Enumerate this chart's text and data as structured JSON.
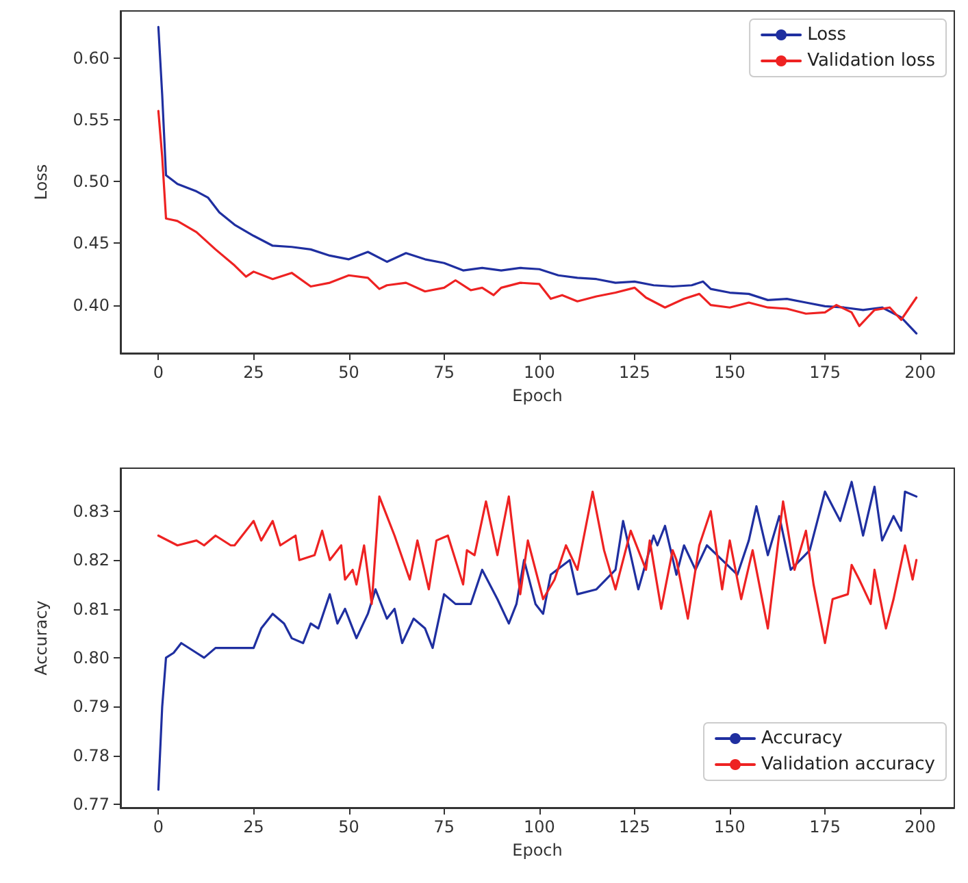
{
  "chart_data": [
    {
      "type": "line",
      "xlabel": "Epoch",
      "ylabel": "Loss",
      "xlim": [
        -9.95,
        208.95
      ],
      "xticks": [
        0,
        25,
        50,
        75,
        100,
        125,
        150,
        175,
        200
      ],
      "ylim": [
        0.361,
        0.638
      ],
      "yticks": [
        {
          "value": 0.4,
          "label": "0.40"
        },
        {
          "value": 0.45,
          "label": "0.45"
        },
        {
          "value": 0.5,
          "label": "0.50"
        },
        {
          "value": 0.55,
          "label": "0.55"
        },
        {
          "value": 0.6,
          "label": "0.60"
        }
      ],
      "legend": "top right",
      "line_style": "solid",
      "series": [
        {
          "name": "Loss",
          "color": "#1f2fa0",
          "x": [
            0,
            1,
            2,
            5,
            10,
            13,
            16,
            20,
            25,
            30,
            35,
            40,
            45,
            50,
            55,
            60,
            65,
            70,
            75,
            80,
            85,
            90,
            95,
            100,
            105,
            110,
            115,
            120,
            125,
            130,
            135,
            140,
            143,
            145,
            150,
            155,
            160,
            165,
            170,
            175,
            180,
            185,
            190,
            195,
            199
          ],
          "values": [
            0.625,
            0.57,
            0.505,
            0.498,
            0.492,
            0.487,
            0.475,
            0.465,
            0.456,
            0.448,
            0.447,
            0.445,
            0.44,
            0.437,
            0.443,
            0.435,
            0.442,
            0.437,
            0.434,
            0.428,
            0.43,
            0.428,
            0.43,
            0.429,
            0.424,
            0.422,
            0.421,
            0.418,
            0.419,
            0.416,
            0.415,
            0.416,
            0.419,
            0.413,
            0.41,
            0.409,
            0.404,
            0.405,
            0.402,
            0.399,
            0.398,
            0.396,
            0.398,
            0.39,
            0.377
          ]
        },
        {
          "name": "Validation loss",
          "color": "#ee2222",
          "x": [
            0,
            1,
            2,
            5,
            10,
            15,
            20,
            23,
            25,
            30,
            35,
            40,
            45,
            50,
            55,
            58,
            60,
            65,
            70,
            75,
            78,
            82,
            85,
            88,
            90,
            95,
            100,
            103,
            106,
            110,
            115,
            120,
            125,
            128,
            133,
            138,
            142,
            145,
            150,
            155,
            160,
            165,
            170,
            175,
            178,
            182,
            184,
            188,
            192,
            195,
            199
          ],
          "values": [
            0.557,
            0.52,
            0.47,
            0.468,
            0.459,
            0.445,
            0.432,
            0.423,
            0.427,
            0.421,
            0.426,
            0.415,
            0.418,
            0.424,
            0.422,
            0.413,
            0.416,
            0.418,
            0.411,
            0.414,
            0.42,
            0.412,
            0.414,
            0.408,
            0.414,
            0.418,
            0.417,
            0.405,
            0.408,
            0.403,
            0.407,
            0.41,
            0.414,
            0.406,
            0.398,
            0.405,
            0.409,
            0.4,
            0.398,
            0.402,
            0.398,
            0.397,
            0.393,
            0.394,
            0.4,
            0.394,
            0.383,
            0.396,
            0.398,
            0.388,
            0.406
          ]
        }
      ]
    },
    {
      "type": "line",
      "xlabel": "Epoch",
      "ylabel": "Accuracy",
      "xlim": [
        -9.95,
        208.95
      ],
      "xticks": [
        0,
        25,
        50,
        75,
        100,
        125,
        150,
        175,
        200
      ],
      "ylim": [
        0.7693,
        0.8388
      ],
      "yticks": [
        0.77,
        0.78,
        0.79,
        {
          "value": 0.8,
          "label": "0.80"
        },
        0.81,
        0.82,
        0.83
      ],
      "legend": "bottom right",
      "line_style": "solid",
      "series": [
        {
          "name": "Accuracy",
          "color": "#1f2fa0",
          "x": [
            0,
            1,
            2,
            4,
            6,
            10,
            12,
            15,
            20,
            25,
            27,
            30,
            33,
            35,
            38,
            40,
            42,
            45,
            47,
            49,
            52,
            55,
            57,
            60,
            62,
            64,
            67,
            70,
            72,
            75,
            78,
            82,
            85,
            89,
            92,
            94,
            96,
            99,
            101,
            103,
            108,
            110,
            115,
            120,
            122,
            126,
            130,
            131,
            133,
            136,
            138,
            141,
            144,
            148,
            152,
            155,
            157,
            160,
            163,
            166,
            171,
            175,
            177,
            179,
            182,
            185,
            188,
            190,
            193,
            195,
            196,
            199
          ],
          "values": [
            0.773,
            0.79,
            0.8,
            0.801,
            0.803,
            0.801,
            0.8,
            0.802,
            0.802,
            0.802,
            0.806,
            0.809,
            0.807,
            0.804,
            0.803,
            0.807,
            0.806,
            0.813,
            0.807,
            0.81,
            0.804,
            0.809,
            0.814,
            0.808,
            0.81,
            0.803,
            0.808,
            0.806,
            0.802,
            0.813,
            0.811,
            0.811,
            0.818,
            0.812,
            0.807,
            0.811,
            0.82,
            0.811,
            0.809,
            0.817,
            0.82,
            0.813,
            0.814,
            0.818,
            0.828,
            0.814,
            0.825,
            0.823,
            0.827,
            0.817,
            0.823,
            0.818,
            0.823,
            0.82,
            0.817,
            0.824,
            0.831,
            0.821,
            0.829,
            0.818,
            0.822,
            0.834,
            0.831,
            0.828,
            0.836,
            0.825,
            0.835,
            0.824,
            0.829,
            0.826,
            0.834,
            0.833
          ]
        },
        {
          "name": "Validation accuracy",
          "color": "#ee2222",
          "x": [
            0,
            5,
            10,
            12,
            15,
            19,
            20,
            25,
            27,
            30,
            32,
            36,
            37,
            41,
            43,
            45,
            48,
            49,
            51,
            52,
            54,
            56,
            58,
            60,
            62,
            66,
            68,
            71,
            73,
            76,
            80,
            81,
            83,
            86,
            89,
            92,
            95,
            97,
            101,
            104,
            107,
            110,
            114,
            117,
            120,
            124,
            128,
            129,
            132,
            135,
            136,
            139,
            142,
            145,
            148,
            150,
            153,
            156,
            160,
            164,
            167,
            170,
            172,
            175,
            177,
            181,
            182,
            184,
            187,
            188,
            191,
            193,
            196,
            198,
            199
          ],
          "values": [
            0.825,
            0.823,
            0.824,
            0.823,
            0.825,
            0.823,
            0.823,
            0.828,
            0.824,
            0.828,
            0.823,
            0.825,
            0.82,
            0.821,
            0.826,
            0.82,
            0.823,
            0.816,
            0.818,
            0.815,
            0.823,
            0.811,
            0.833,
            0.829,
            0.825,
            0.816,
            0.824,
            0.814,
            0.824,
            0.825,
            0.815,
            0.822,
            0.821,
            0.832,
            0.821,
            0.833,
            0.813,
            0.824,
            0.812,
            0.816,
            0.823,
            0.818,
            0.834,
            0.822,
            0.814,
            0.826,
            0.818,
            0.824,
            0.81,
            0.822,
            0.82,
            0.808,
            0.823,
            0.83,
            0.814,
            0.824,
            0.812,
            0.822,
            0.806,
            0.832,
            0.818,
            0.826,
            0.815,
            0.803,
            0.812,
            0.813,
            0.819,
            0.816,
            0.811,
            0.818,
            0.806,
            0.812,
            0.823,
            0.816,
            0.82
          ]
        }
      ]
    }
  ]
}
